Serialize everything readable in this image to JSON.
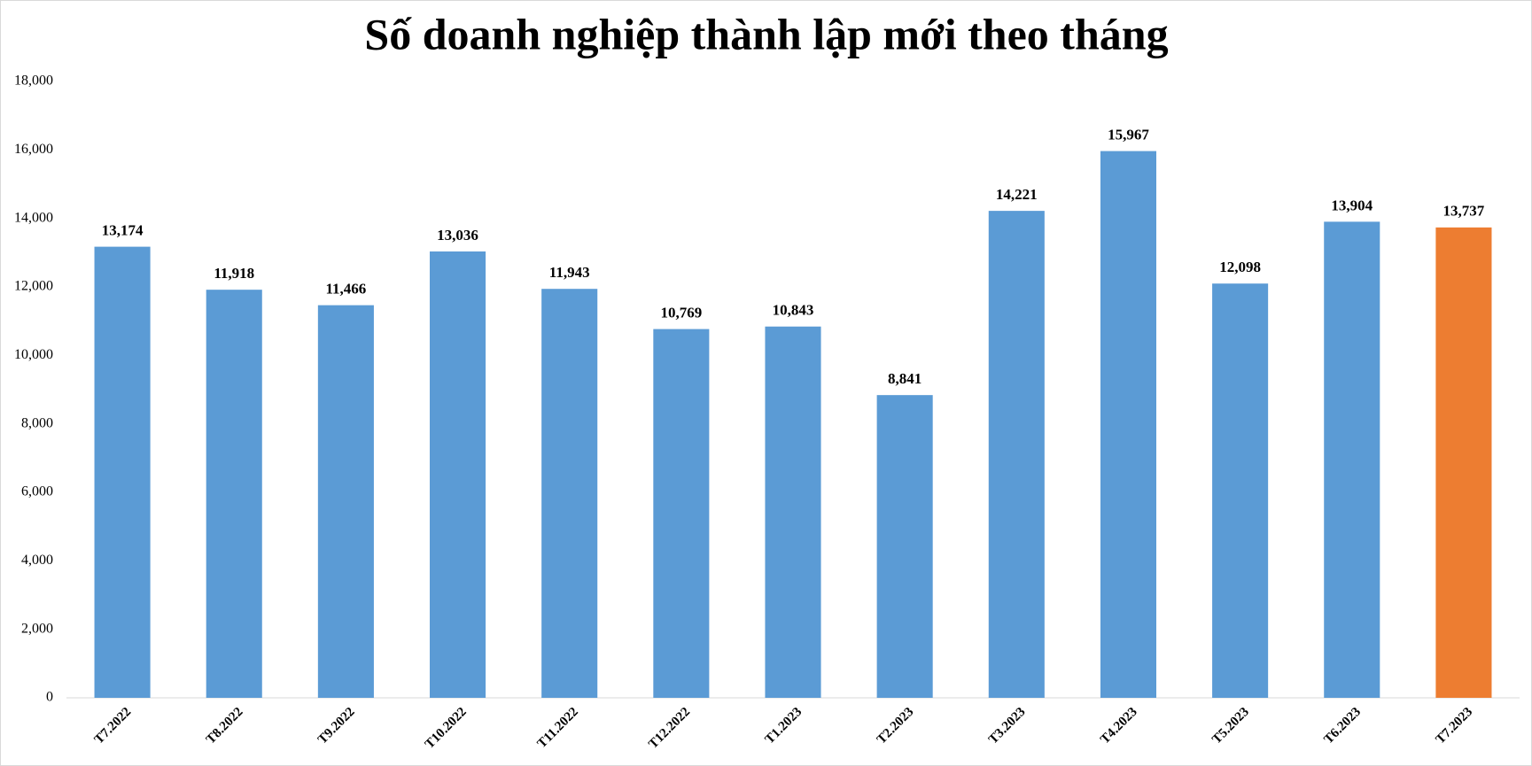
{
  "chart_data": {
    "type": "bar",
    "title": "Số doanh nghiệp thành lập mới theo tháng",
    "categories": [
      "T7.2022",
      "T8.2022",
      "T9.2022",
      "T10.2022",
      "T11.2022",
      "T12.2022",
      "T1.2023",
      "T2.2023",
      "T3.2023",
      "T4.2023",
      "T5.2023",
      "T6.2023",
      "T7.2023"
    ],
    "values": [
      13174,
      11918,
      11466,
      13036,
      11943,
      10769,
      10843,
      8841,
      14221,
      15967,
      12098,
      13904,
      13737
    ],
    "value_labels": [
      "13,174",
      "11,918",
      "11,466",
      "13,036",
      "11,943",
      "10,769",
      "10,843",
      "8,841",
      "14,221",
      "15,967",
      "12,098",
      "13,904",
      "13,737"
    ],
    "colors": [
      "#5b9bd5",
      "#5b9bd5",
      "#5b9bd5",
      "#5b9bd5",
      "#5b9bd5",
      "#5b9bd5",
      "#5b9bd5",
      "#5b9bd5",
      "#5b9bd5",
      "#5b9bd5",
      "#5b9bd5",
      "#5b9bd5",
      "#ed7d31"
    ],
    "ylim": [
      0,
      18000
    ],
    "yticks": [
      0,
      {
        "value": 2000,
        "label": "2,000"
      },
      {
        "value": 4000,
        "label": "4,000"
      },
      {
        "value": 6000,
        "label": "6,000"
      },
      {
        "value": 8000,
        "label": "8,000"
      },
      {
        "value": 10000,
        "label": "10,000"
      },
      {
        "value": 12000,
        "label": "12,000"
      },
      {
        "value": 14000,
        "label": "14,000"
      },
      {
        "value": 16000,
        "label": "16,000"
      },
      {
        "value": 18000,
        "label": "18,000"
      }
    ],
    "grid": false
  }
}
